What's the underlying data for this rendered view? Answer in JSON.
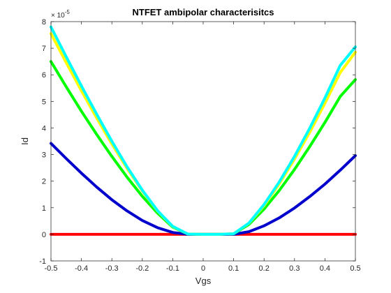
{
  "chart_data": {
    "type": "line",
    "title": "NTFET ambipolar characterisitcs",
    "xlabel": "Vgs",
    "ylabel": "Id",
    "y_scale_label": {
      "base": "× 10",
      "exponent": "-5"
    },
    "y_multiplier": 1e-05,
    "xlim": [
      -0.5,
      0.5
    ],
    "ylim": [
      -1,
      8
    ],
    "xticks": [
      -0.5,
      -0.4,
      -0.3,
      -0.2,
      -0.1,
      0,
      0.1,
      0.2,
      0.3,
      0.4,
      0.5
    ],
    "xtick_labels": [
      "-0.5",
      "-0.4",
      "-0.3",
      "-0.2",
      "-0.1",
      "0",
      "0.1",
      "0.2",
      "0.3",
      "0.4",
      "0.5"
    ],
    "yticks": [
      -1,
      0,
      1,
      2,
      3,
      4,
      5,
      6,
      7,
      8
    ],
    "ytick_labels": [
      "-1",
      "0",
      "1",
      "2",
      "3",
      "4",
      "5",
      "6",
      "7",
      "8"
    ],
    "grid": false,
    "x": [
      -0.5,
      -0.45,
      -0.4,
      -0.35,
      -0.3,
      -0.25,
      -0.2,
      -0.15,
      -0.1,
      -0.05,
      0,
      0.05,
      0.1,
      0.15,
      0.2,
      0.25,
      0.3,
      0.35,
      0.4,
      0.45,
      0.5
    ],
    "series": [
      {
        "color": "#ff0000",
        "values": [
          0,
          0,
          0,
          0,
          0,
          0,
          0,
          0,
          0,
          0,
          0,
          0,
          0,
          0,
          0,
          0,
          0,
          0,
          0,
          0,
          0
        ]
      },
      {
        "color": "#0000cc",
        "values": [
          3.42,
          2.85,
          2.3,
          1.78,
          1.3,
          0.88,
          0.52,
          0.25,
          0.07,
          0.0,
          0.0,
          0.0,
          0.0,
          0.1,
          0.32,
          0.62,
          0.99,
          1.42,
          1.89,
          2.41,
          2.96
        ]
      },
      {
        "color": "#00ff00",
        "values": [
          6.5,
          5.55,
          4.63,
          3.76,
          2.93,
          2.15,
          1.43,
          0.8,
          0.27,
          0.01,
          0.0,
          0.0,
          0.02,
          0.37,
          0.95,
          1.65,
          2.44,
          3.3,
          4.21,
          5.18,
          5.82
        ]
      },
      {
        "color": "#ffff00",
        "values": [
          7.55,
          6.46,
          5.4,
          4.38,
          3.4,
          2.48,
          1.63,
          0.88,
          0.29,
          0.01,
          0.0,
          0.0,
          0.02,
          0.41,
          1.08,
          1.9,
          2.83,
          3.84,
          4.93,
          6.08,
          6.85
        ]
      },
      {
        "color": "#00ffff",
        "values": [
          7.8,
          6.68,
          5.58,
          4.52,
          3.5,
          2.54,
          1.66,
          0.89,
          0.3,
          0.01,
          0.0,
          0.0,
          0.02,
          0.42,
          1.12,
          1.97,
          2.93,
          3.99,
          5.13,
          6.35,
          7.05
        ]
      }
    ]
  }
}
